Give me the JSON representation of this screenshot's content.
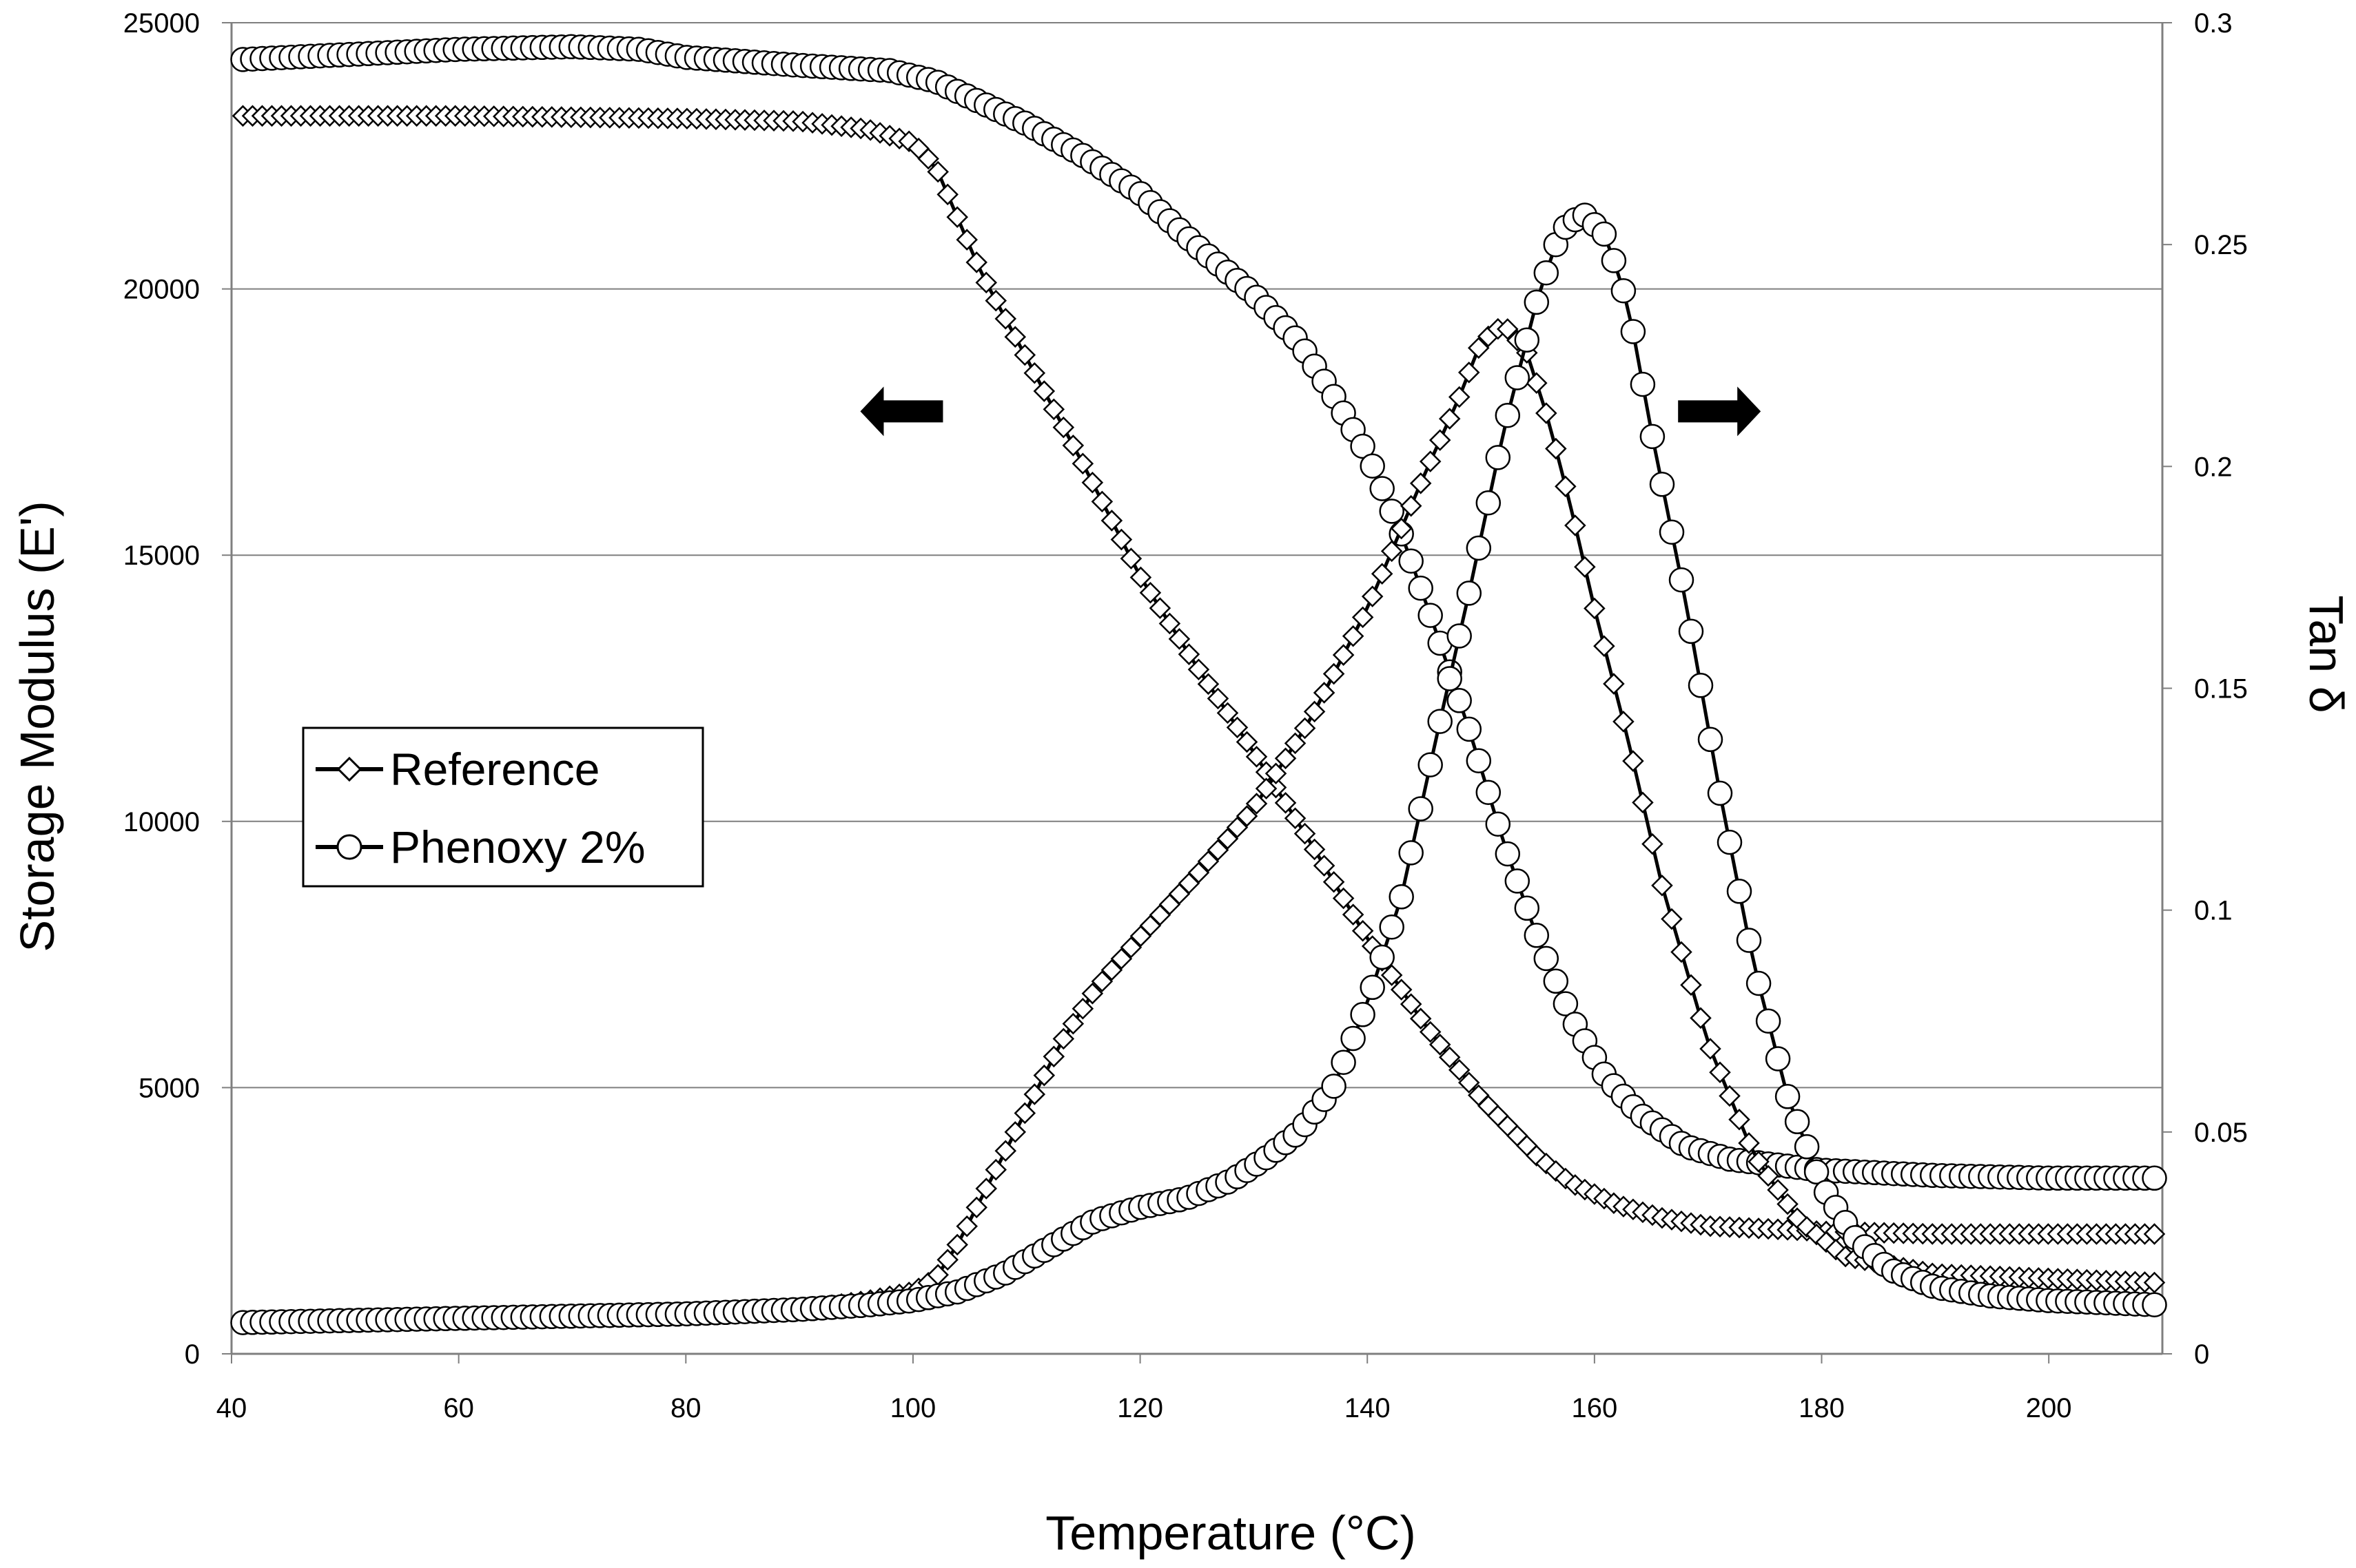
{
  "chart_data": {
    "type": "line",
    "title": "",
    "xlabel": "Temperature (°C)",
    "ylabel": "Storage Modulus (E')",
    "y2label": "Tan δ",
    "xlim": [
      40,
      210
    ],
    "ylim": [
      0,
      25000
    ],
    "y2lim": [
      0,
      0.3
    ],
    "x_ticks": [
      "40",
      "60",
      "80",
      "100",
      "120",
      "140",
      "160",
      "180",
      "200"
    ],
    "y_ticks": [
      "0",
      "5000",
      "10000",
      "15000",
      "20000",
      "25000"
    ],
    "y2_ticks": [
      "0",
      "0.05",
      "0.1",
      "0.15",
      "0.2",
      "0.25",
      "0.3"
    ],
    "grid": "horizontal",
    "legend": {
      "position": "center-left",
      "entries": [
        {
          "name": "Reference",
          "marker": "diamond"
        },
        {
          "name": "Phenoxy 2%",
          "marker": "circle"
        }
      ]
    },
    "annotations": [
      {
        "type": "arrow",
        "direction": "left",
        "meaning": "storage modulus curves use left axis",
        "x": 99,
        "y": 17700
      },
      {
        "type": "arrow",
        "direction": "right",
        "meaning": "tan delta curves use right axis",
        "x": 171,
        "y": 17700
      }
    ],
    "series": [
      {
        "name": "Reference",
        "quantity": "E'",
        "axis": "left",
        "marker": "diamond",
        "points": [
          [
            40,
            23250
          ],
          [
            60,
            23250
          ],
          [
            80,
            23200
          ],
          [
            90,
            23150
          ],
          [
            96,
            23000
          ],
          [
            100,
            22750
          ],
          [
            102,
            22300
          ],
          [
            104,
            21300
          ],
          [
            106,
            20300
          ],
          [
            110,
            18700
          ],
          [
            115,
            16700
          ],
          [
            120,
            14600
          ],
          [
            125,
            12900
          ],
          [
            130,
            11300
          ],
          [
            135,
            9600
          ],
          [
            140,
            7800
          ],
          [
            145,
            6200
          ],
          [
            150,
            4800
          ],
          [
            155,
            3700
          ],
          [
            158,
            3200
          ],
          [
            162,
            2800
          ],
          [
            166,
            2550
          ],
          [
            170,
            2400
          ],
          [
            180,
            2300
          ],
          [
            190,
            2250
          ],
          [
            210,
            2250
          ]
        ]
      },
      {
        "name": "Phenoxy 2%",
        "quantity": "E'",
        "axis": "left",
        "marker": "circle",
        "points": [
          [
            40,
            24300
          ],
          [
            50,
            24400
          ],
          [
            60,
            24500
          ],
          [
            70,
            24550
          ],
          [
            76,
            24500
          ],
          [
            80,
            24350
          ],
          [
            90,
            24200
          ],
          [
            98,
            24100
          ],
          [
            102,
            23900
          ],
          [
            106,
            23500
          ],
          [
            110,
            23100
          ],
          [
            115,
            22500
          ],
          [
            120,
            21800
          ],
          [
            125,
            20800
          ],
          [
            130,
            19900
          ],
          [
            134,
            19000
          ],
          [
            137,
            18000
          ],
          [
            140,
            16900
          ],
          [
            143,
            15400
          ],
          [
            146,
            13600
          ],
          [
            149,
            11700
          ],
          [
            152,
            9600
          ],
          [
            155,
            7800
          ],
          [
            158,
            6300
          ],
          [
            161,
            5200
          ],
          [
            164,
            4500
          ],
          [
            168,
            3900
          ],
          [
            172,
            3650
          ],
          [
            176,
            3550
          ],
          [
            180,
            3450
          ],
          [
            190,
            3350
          ],
          [
            200,
            3300
          ],
          [
            210,
            3300
          ]
        ]
      },
      {
        "name": "Reference",
        "quantity": "tan delta",
        "axis": "right",
        "marker": "diamond",
        "points": [
          [
            40,
            0.007
          ],
          [
            60,
            0.008
          ],
          [
            80,
            0.009
          ],
          [
            90,
            0.01
          ],
          [
            96,
            0.012
          ],
          [
            100,
            0.014
          ],
          [
            102,
            0.017
          ],
          [
            104,
            0.025
          ],
          [
            107,
            0.04
          ],
          [
            110,
            0.055
          ],
          [
            113,
            0.07
          ],
          [
            116,
            0.082
          ],
          [
            120,
            0.094
          ],
          [
            125,
            0.108
          ],
          [
            130,
            0.123
          ],
          [
            135,
            0.143
          ],
          [
            140,
            0.168
          ],
          [
            145,
            0.198
          ],
          [
            148,
            0.215
          ],
          [
            150,
            0.228
          ],
          [
            152,
            0.232
          ],
          [
            154,
            0.226
          ],
          [
            156,
            0.21
          ],
          [
            158,
            0.19
          ],
          [
            160,
            0.168
          ],
          [
            163,
            0.138
          ],
          [
            166,
            0.105
          ],
          [
            170,
            0.07
          ],
          [
            174,
            0.045
          ],
          [
            178,
            0.03
          ],
          [
            182,
            0.022
          ],
          [
            190,
            0.018
          ],
          [
            200,
            0.017
          ],
          [
            210,
            0.016
          ]
        ]
      },
      {
        "name": "Phenoxy 2%",
        "quantity": "tan delta",
        "axis": "right",
        "marker": "circle",
        "points": [
          [
            40,
            0.007
          ],
          [
            60,
            0.008
          ],
          [
            80,
            0.009
          ],
          [
            90,
            0.01
          ],
          [
            96,
            0.011
          ],
          [
            100,
            0.012
          ],
          [
            104,
            0.014
          ],
          [
            108,
            0.018
          ],
          [
            112,
            0.024
          ],
          [
            116,
            0.03
          ],
          [
            120,
            0.033
          ],
          [
            124,
            0.035
          ],
          [
            128,
            0.039
          ],
          [
            131,
            0.044
          ],
          [
            134,
            0.05
          ],
          [
            137,
            0.06
          ],
          [
            140,
            0.079
          ],
          [
            143,
            0.103
          ],
          [
            146,
            0.138
          ],
          [
            149,
            0.172
          ],
          [
            152,
            0.208
          ],
          [
            155,
            0.238
          ],
          [
            157,
            0.253
          ],
          [
            159,
            0.257
          ],
          [
            161,
            0.252
          ],
          [
            163,
            0.236
          ],
          [
            165,
            0.208
          ],
          [
            168,
            0.17
          ],
          [
            171,
            0.127
          ],
          [
            174,
            0.088
          ],
          [
            177,
            0.058
          ],
          [
            180,
            0.038
          ],
          [
            183,
            0.026
          ],
          [
            186,
            0.019
          ],
          [
            190,
            0.015
          ],
          [
            195,
            0.013
          ],
          [
            200,
            0.012
          ],
          [
            210,
            0.011
          ]
        ]
      }
    ]
  }
}
